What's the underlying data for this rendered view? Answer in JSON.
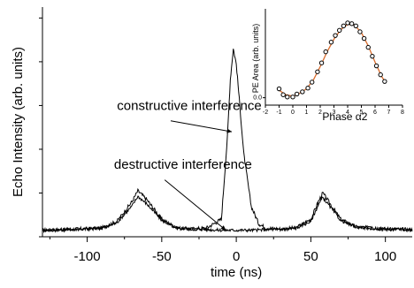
{
  "chart_data": {
    "type": "line",
    "main": {
      "xlabel": "time (ns)",
      "ylabel": "Echo Intensity (arb. units)",
      "xlim": [
        -130,
        118
      ],
      "ylim": [
        0,
        1.05
      ],
      "x_ticks": [
        -100,
        -50,
        0,
        50,
        100
      ],
      "x_tick_labels": [
        "-100",
        "-50",
        "0",
        "50",
        "100"
      ],
      "grid": false,
      "series": [
        {
          "points": [
            [
              -130,
              0.03
            ],
            [
              -120,
              0.032
            ],
            [
              -110,
              0.034
            ],
            [
              -100,
              0.036
            ],
            [
              -90,
              0.04
            ],
            [
              -80,
              0.07
            ],
            [
              -70,
              0.16
            ],
            [
              -66,
              0.21
            ],
            [
              -60,
              0.17
            ],
            [
              -50,
              0.08
            ],
            [
              -40,
              0.04
            ],
            [
              -30,
              0.035
            ],
            [
              -20,
              0.04
            ],
            [
              -10,
              0.08
            ],
            [
              -6,
              0.45
            ],
            [
              -4,
              0.72
            ],
            [
              -2,
              0.86
            ],
            [
              0,
              0.79
            ],
            [
              2,
              0.63
            ],
            [
              5,
              0.38
            ],
            [
              10,
              0.14
            ],
            [
              15,
              0.06
            ],
            [
              20,
              0.04
            ],
            [
              30,
              0.035
            ],
            [
              40,
              0.04
            ],
            [
              50,
              0.08
            ],
            [
              55,
              0.16
            ],
            [
              58,
              0.2
            ],
            [
              62,
              0.16
            ],
            [
              70,
              0.08
            ],
            [
              80,
              0.045
            ],
            [
              90,
              0.04
            ],
            [
              100,
              0.036
            ],
            [
              110,
              0.034
            ],
            [
              118,
              0.032
            ]
          ]
        },
        {
          "points": [
            [
              -130,
              0.03
            ],
            [
              -120,
              0.032
            ],
            [
              -110,
              0.034
            ],
            [
              -100,
              0.036
            ],
            [
              -90,
              0.04
            ],
            [
              -80,
              0.065
            ],
            [
              -70,
              0.14
            ],
            [
              -66,
              0.185
            ],
            [
              -60,
              0.15
            ],
            [
              -50,
              0.075
            ],
            [
              -40,
              0.04
            ],
            [
              -30,
              0.035
            ],
            [
              -20,
              0.033
            ],
            [
              -10,
              0.03
            ],
            [
              -5,
              0.03
            ],
            [
              0,
              0.03
            ],
            [
              5,
              0.03
            ],
            [
              10,
              0.03
            ],
            [
              20,
              0.032
            ],
            [
              30,
              0.035
            ],
            [
              40,
              0.04
            ],
            [
              50,
              0.07
            ],
            [
              55,
              0.145
            ],
            [
              58,
              0.18
            ],
            [
              62,
              0.145
            ],
            [
              70,
              0.075
            ],
            [
              80,
              0.045
            ],
            [
              90,
              0.04
            ],
            [
              100,
              0.036
            ],
            [
              110,
              0.034
            ],
            [
              118,
              0.032
            ]
          ]
        }
      ],
      "annotations": [
        {
          "text": "constructive interference",
          "x": -80,
          "y": 0.58,
          "arrow_to": [
            -3,
            0.48
          ]
        },
        {
          "text": "destructive interference",
          "x": -82,
          "y": 0.31,
          "arrow_to": [
            -7,
            0.03
          ]
        }
      ]
    },
    "inset": {
      "type": "scatter",
      "xlabel": "Phase α2",
      "ylabel": "PE Area (arb. units)",
      "xlim": [
        -2,
        8
      ],
      "ylim": [
        -0.1,
        1.2
      ],
      "x_ticks": [
        -2,
        -1,
        0,
        1,
        2,
        3,
        4,
        5,
        6,
        7,
        8
      ],
      "x_tick_labels": [
        "-2",
        "-1",
        "0",
        "1",
        "2",
        "3",
        "4",
        "5",
        "6",
        "7",
        "8"
      ],
      "y_ticks": [
        0.0
      ],
      "y_tick_labels": [
        "0.0"
      ],
      "points": [
        [
          -1.0,
          0.12
        ],
        [
          -0.7,
          0.04
        ],
        [
          -0.4,
          0.01
        ],
        [
          0.0,
          0.01
        ],
        [
          0.3,
          0.05
        ],
        [
          0.7,
          0.08
        ],
        [
          1.1,
          0.13
        ],
        [
          1.4,
          0.21
        ],
        [
          1.8,
          0.35
        ],
        [
          2.1,
          0.47
        ],
        [
          2.4,
          0.62
        ],
        [
          2.8,
          0.75
        ],
        [
          3.1,
          0.84
        ],
        [
          3.4,
          0.91
        ],
        [
          3.7,
          0.97
        ],
        [
          4.0,
          1.01
        ],
        [
          4.3,
          1.0
        ],
        [
          4.6,
          0.97
        ],
        [
          4.9,
          0.89
        ],
        [
          5.2,
          0.8
        ],
        [
          5.5,
          0.68
        ],
        [
          5.8,
          0.56
        ],
        [
          6.1,
          0.43
        ],
        [
          6.4,
          0.31
        ],
        [
          6.7,
          0.22
        ]
      ],
      "fit": [
        [
          -1.0,
          0.1
        ],
        [
          -0.5,
          0.04
        ],
        [
          0.0,
          0.02
        ],
        [
          0.5,
          0.06
        ],
        [
          1.0,
          0.12
        ],
        [
          1.5,
          0.24
        ],
        [
          2.0,
          0.42
        ],
        [
          2.5,
          0.62
        ],
        [
          3.0,
          0.79
        ],
        [
          3.5,
          0.92
        ],
        [
          4.0,
          0.99
        ],
        [
          4.5,
          0.98
        ],
        [
          5.0,
          0.88
        ],
        [
          5.5,
          0.7
        ],
        [
          6.0,
          0.48
        ],
        [
          6.5,
          0.28
        ],
        [
          6.8,
          0.2
        ]
      ]
    }
  }
}
